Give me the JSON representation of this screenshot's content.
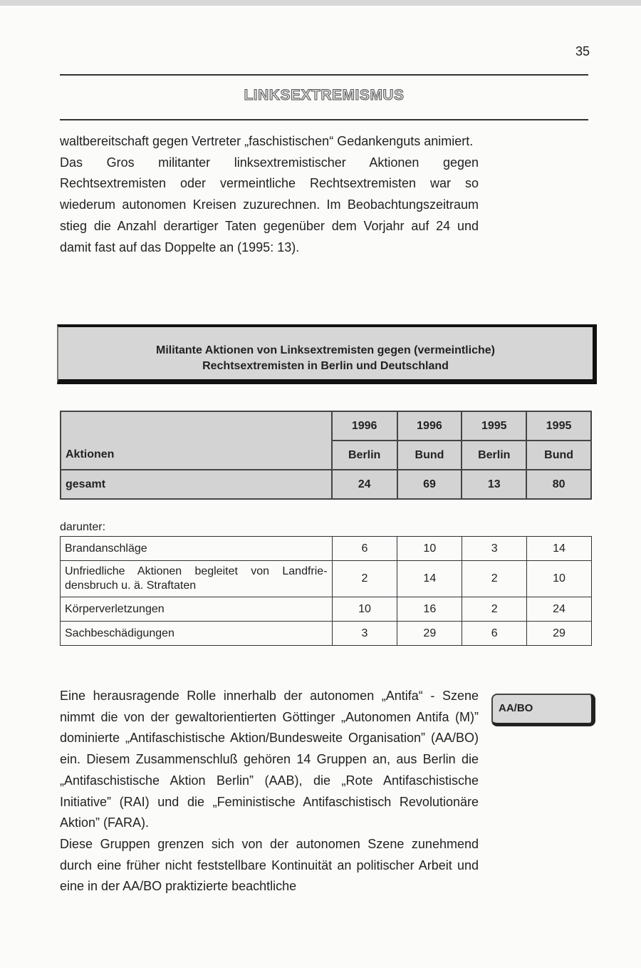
{
  "page_number": "35",
  "section_heading": "LINKSEXTREMISMUS",
  "paragraphs_top": [
    "waltbereitschaft gegen Vertreter „faschistischen“ Gedankenguts animiert.",
    "Das Gros militanter linksextremistischer Aktionen gegen Rechtsextremisten oder vermeintliche Rechtsextremisten war so wiederum autonomen Kreisen zuzurechnen. Im Beobach­tungszeitraum stieg die Anzahl derartiger Taten gegenüber dem Vorjahr auf 24 und damit fast auf das Doppelte an (1995: 13)."
  ],
  "table_title_line1": "Militante Aktionen von Linksextremisten gegen (vermeintliche)",
  "table_title_line2": "Rechtsextremisten in Berlin und Deutschland",
  "table": {
    "years": [
      "1996",
      "1996",
      "1995",
      "1995"
    ],
    "row_label": "Aktionen",
    "regions": [
      "Berlin",
      "Bund",
      "Berlin",
      "Bund"
    ],
    "total_label": "gesamt",
    "totals": [
      "24",
      "69",
      "13",
      "80"
    ],
    "sub_label": "darunter:",
    "rows": [
      {
        "label": "Brandanschläge",
        "values": [
          "6",
          "10",
          "3",
          "14"
        ]
      },
      {
        "label": "Unfriedliche Aktionen begleitet von Landfrie­densbruch u. ä. Straftaten",
        "values": [
          "2",
          "14",
          "2",
          "10"
        ]
      },
      {
        "label": "Körperverletzungen",
        "values": [
          "10",
          "16",
          "2",
          "24"
        ]
      },
      {
        "label": "Sachbeschädigungen",
        "values": [
          "3",
          "29",
          "6",
          "29"
        ]
      }
    ]
  },
  "margin_label": "AA/BO",
  "paragraphs_bottom": [
    "Eine herausragende Rolle innerhalb der autonomen „Antifa“ - Szene nimmt die von der gewaltorientierten Göttinger „Auto­nomen Antifa (M)” dominierte „Antifaschistische Aktion/Bundes­weite Organisation” (AA/BO) ein. Diesem Zusammenschluß ge­hören 14 Gruppen an, aus Berlin die „Antifaschistische Aktion Berlin” (AAB), die „Rote Antifaschistische Initiative” (RAI) und die „Feministische Antifaschistisch Revolutionäre Aktion” (FARA).",
    "Diese Gruppen grenzen sich von der autonomen Szene zu­nehmend durch eine früher nicht feststellbare Kontinuität an politischer Arbeit und eine in der AA/BO praktizierte beachtliche"
  ]
}
